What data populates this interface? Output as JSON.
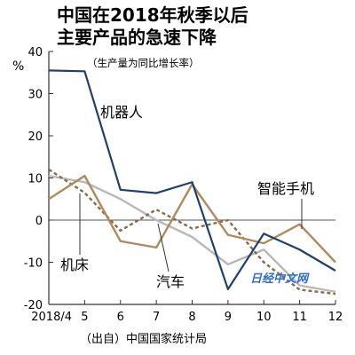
{
  "chart_data": {
    "type": "line",
    "title_lines": [
      "中国在2018年秋季以后",
      "主要产品的急速下降"
    ],
    "subtitle": "（生产量为同比增长率）",
    "y_unit": "%",
    "source": "（出自）中国国家统计局",
    "watermark": "日经中文网",
    "categories": [
      "2018/4",
      "5",
      "6",
      "7",
      "8",
      "9",
      "10",
      "11",
      "12"
    ],
    "ylim": [
      -20,
      40
    ],
    "yticks": [
      40,
      30,
      20,
      10,
      0,
      -10,
      -20
    ],
    "grid": false,
    "series": [
      {
        "name": "机器人",
        "color": "#1f3f6e",
        "dash": "",
        "values": [
          35.5,
          35.3,
          7.2,
          6.4,
          9.0,
          -16.4,
          -3.2,
          -7.0,
          -12.0
        ]
      },
      {
        "name": "智能手机",
        "color": "#b08a5a",
        "dash": "",
        "values": [
          5.0,
          10.5,
          -5.0,
          -6.5,
          8.5,
          -3.5,
          -5.5,
          -1.0,
          -10.0
        ]
      },
      {
        "name": "机床",
        "color": "#8a6a4a",
        "dash": "4,3",
        "values": [
          12.0,
          6.5,
          -2.5,
          2.5,
          -2.0,
          0.0,
          -10.0,
          -16.5,
          -17.5
        ]
      },
      {
        "name": "汽车",
        "color": "#b8b8b8",
        "dash": "",
        "values": [
          10.5,
          9.0,
          5.0,
          0.0,
          -4.0,
          -10.5,
          -7.0,
          -15.5,
          -17.0
        ]
      }
    ]
  }
}
